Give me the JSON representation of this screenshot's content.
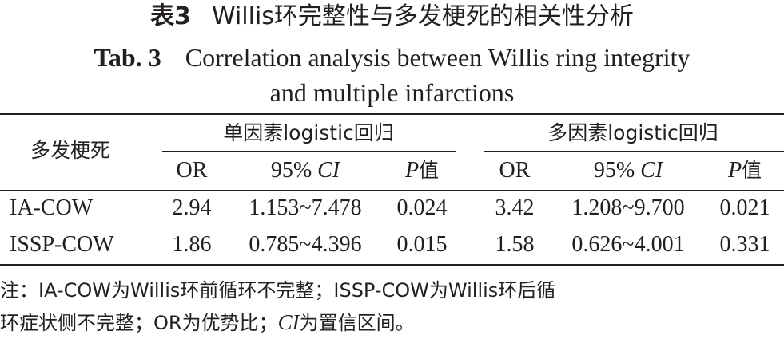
{
  "title": {
    "cn_label": "表3",
    "cn_text": "Willis环完整性与多发梗死的相关性分析",
    "en_label": "Tab. 3",
    "en_line1": "Correlation analysis between Willis ring integrity",
    "en_line2": "and multiple infarctions"
  },
  "table": {
    "row_header": "多发梗死",
    "group1": "单因素logistic回归",
    "group2": "多因素logistic回归",
    "sub": {
      "or": "OR",
      "ci_prefix": "95% ",
      "ci_italic": "CI",
      "p_italic": "P",
      "p_suffix": "值"
    },
    "rows": [
      {
        "label": "IA-COW",
        "or1": "2.94",
        "ci1": "1.153~7.478",
        "p1": "0.024",
        "or2": "3.42",
        "ci2": "1.208~9.700",
        "p2": "0.021"
      },
      {
        "label": "ISSP-COW",
        "or1": "1.86",
        "ci1": "0.785~4.396",
        "p1": "0.015",
        "or2": "1.58",
        "ci2": "0.626~4.001",
        "p2": "0.331"
      }
    ]
  },
  "note": {
    "line1": "注：IA-COW为Willis环前循环不完整；ISSP-COW为Willis环后循",
    "line2_a": "环症状侧不完整；OR为优势比；",
    "line2_ci": "CI",
    "line2_b": "为置信区间。"
  }
}
